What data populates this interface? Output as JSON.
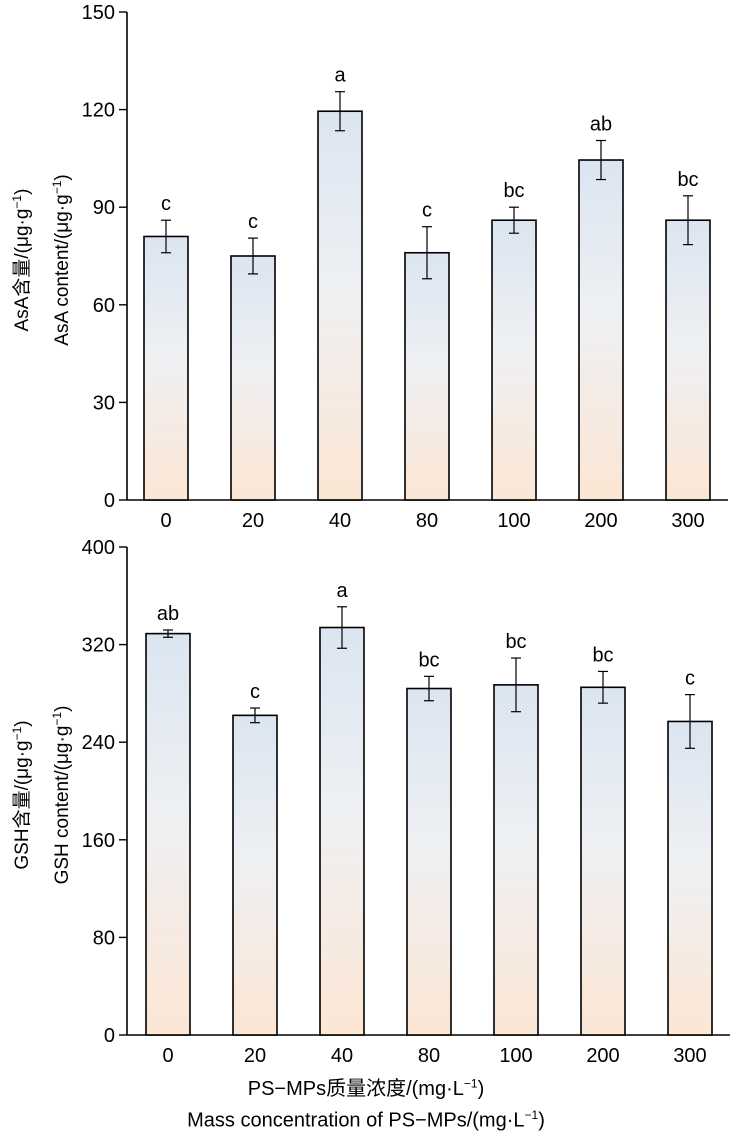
{
  "chart_data": [
    {
      "type": "bar",
      "categories": [
        "0",
        "20",
        "40",
        "80",
        "100",
        "200",
        "300"
      ],
      "values": [
        81,
        75,
        119.5,
        76,
        86,
        104.5,
        86
      ],
      "errors": [
        5,
        5.5,
        6,
        8,
        4,
        6,
        7.5
      ],
      "significance": [
        "c",
        "c",
        "a",
        "c",
        "bc",
        "ab",
        "bc"
      ],
      "ylim": [
        0,
        150
      ],
      "yticks": [
        "0",
        "30",
        "60",
        "90",
        "120",
        "150"
      ],
      "ylabel_cn": "AsA含量/(μg·g",
      "ylabel_en": "AsA content/(μg·g",
      "ylabel_sup": "−1",
      "ylabel_close": ")",
      "colors": {
        "bar_top": "#dbe5f1",
        "bar_bottom": "#fce6d4",
        "stroke": "#000000"
      }
    },
    {
      "type": "bar",
      "categories": [
        "0",
        "20",
        "40",
        "80",
        "100",
        "200",
        "300"
      ],
      "values": [
        329,
        262,
        334,
        284,
        287,
        285,
        257
      ],
      "errors": [
        3,
        6,
        17,
        10,
        22,
        13,
        22
      ],
      "significance": [
        "ab",
        "c",
        "a",
        "bc",
        "bc",
        "bc",
        "c"
      ],
      "ylim": [
        0,
        400
      ],
      "yticks": [
        "0",
        "80",
        "160",
        "240",
        "320",
        "400"
      ],
      "ylabel_cn": "GSH含量/(μg·g",
      "ylabel_en": "GSH content/(μg·g",
      "ylabel_sup": "−1",
      "ylabel_close": ")",
      "colors": {
        "bar_top": "#dbe5f1",
        "bar_bottom": "#fce6d4",
        "stroke": "#000000"
      }
    }
  ],
  "xtitle": {
    "cn": "PS−MPs质量浓度/(mg·L",
    "en": "Mass concentration of PS−MPs/(mg·L",
    "sup": "−1",
    "close": ")"
  }
}
